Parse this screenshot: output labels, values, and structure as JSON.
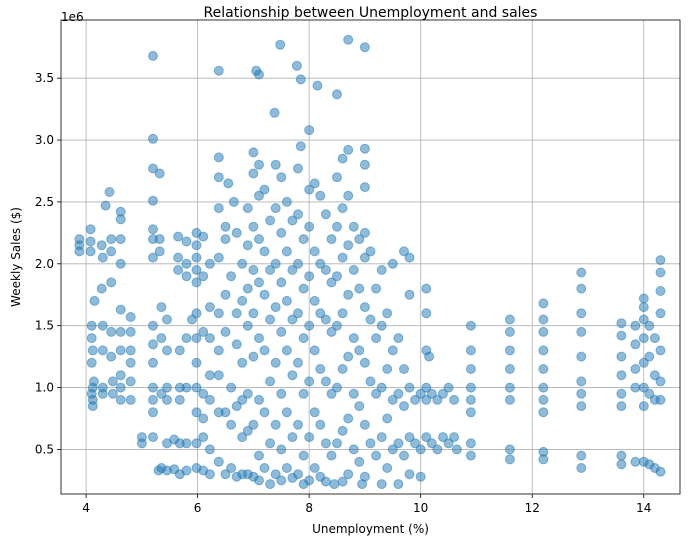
{
  "chart_data": {
    "type": "scatter",
    "title": "Relationship between Unemployment and sales",
    "xlabel": "Unemployment (%)",
    "ylabel": "Weekly Sales ($)",
    "y_offset_label": "1e6",
    "xlim": [
      3.55,
      14.65
    ],
    "ylim": [
      0.14,
      3.97
    ],
    "x_ticks": [
      4,
      6,
      8,
      10,
      12,
      14
    ],
    "x_tick_labels": [
      "4",
      "6",
      "8",
      "10",
      "12",
      "14"
    ],
    "y_ticks": [
      0.5,
      1.0,
      1.5,
      2.0,
      2.5,
      3.0,
      3.5
    ],
    "y_tick_labels": [
      "0.5",
      "1.0",
      "1.5",
      "2.0",
      "2.5",
      "3.0",
      "3.5"
    ],
    "grid": true,
    "marker_color": "#1f77b4",
    "marker_alpha": 0.5,
    "points": [
      [
        3.88,
        2.1
      ],
      [
        3.88,
        2.2
      ],
      [
        3.88,
        2.15
      ],
      [
        4.08,
        2.28
      ],
      [
        4.08,
        2.18
      ],
      [
        4.08,
        2.1
      ],
      [
        4.1,
        1.5
      ],
      [
        4.1,
        1.4
      ],
      [
        4.12,
        1.3
      ],
      [
        4.1,
        1.2
      ],
      [
        4.12,
        1.0
      ],
      [
        4.1,
        0.95
      ],
      [
        4.12,
        0.9
      ],
      [
        4.14,
        1.05
      ],
      [
        4.12,
        0.85
      ],
      [
        4.15,
        1.7
      ],
      [
        4.28,
        2.15
      ],
      [
        4.3,
        2.05
      ],
      [
        4.28,
        1.8
      ],
      [
        4.3,
        1.5
      ],
      [
        4.3,
        1.3
      ],
      [
        4.3,
        1.0
      ],
      [
        4.3,
        0.95
      ],
      [
        4.35,
        2.47
      ],
      [
        4.42,
        2.58
      ],
      [
        4.45,
        1.85
      ],
      [
        4.45,
        1.45
      ],
      [
        4.45,
        1.25
      ],
      [
        4.48,
        1.05
      ],
      [
        4.48,
        0.95
      ],
      [
        4.45,
        2.2
      ],
      [
        4.45,
        2.1
      ],
      [
        4.62,
        2.42
      ],
      [
        4.62,
        2.36
      ],
      [
        4.62,
        2.2
      ],
      [
        4.62,
        2.0
      ],
      [
        4.62,
        1.63
      ],
      [
        4.62,
        1.45
      ],
      [
        4.62,
        1.3
      ],
      [
        4.62,
        1.1
      ],
      [
        4.62,
        1.0
      ],
      [
        4.62,
        0.9
      ],
      [
        4.8,
        1.57
      ],
      [
        4.8,
        1.45
      ],
      [
        4.8,
        1.3
      ],
      [
        4.8,
        1.05
      ],
      [
        4.8,
        0.9
      ],
      [
        4.8,
        1.2
      ],
      [
        5.0,
        0.55
      ],
      [
        5.0,
        0.6
      ],
      [
        5.2,
        3.68
      ],
      [
        5.2,
        3.01
      ],
      [
        5.2,
        2.77
      ],
      [
        5.2,
        2.51
      ],
      [
        5.2,
        2.28
      ],
      [
        5.2,
        2.2
      ],
      [
        5.2,
        2.05
      ],
      [
        5.2,
        1.5
      ],
      [
        5.2,
        1.35
      ],
      [
        5.2,
        1.2
      ],
      [
        5.2,
        1.0
      ],
      [
        5.2,
        0.9
      ],
      [
        5.2,
        0.8
      ],
      [
        5.2,
        0.6
      ],
      [
        5.32,
        2.73
      ],
      [
        5.32,
        2.2
      ],
      [
        5.32,
        2.1
      ],
      [
        5.35,
        1.65
      ],
      [
        5.35,
        1.4
      ],
      [
        5.35,
        0.95
      ],
      [
        5.35,
        0.35
      ],
      [
        5.3,
        0.33
      ],
      [
        5.45,
        1.55
      ],
      [
        5.45,
        1.3
      ],
      [
        5.45,
        1.0
      ],
      [
        5.45,
        0.9
      ],
      [
        5.45,
        0.55
      ],
      [
        5.45,
        0.33
      ],
      [
        5.58,
        0.58
      ],
      [
        5.58,
        0.34
      ],
      [
        5.65,
        2.22
      ],
      [
        5.65,
        2.05
      ],
      [
        5.65,
        1.95
      ],
      [
        5.68,
        1.3
      ],
      [
        5.68,
        1.0
      ],
      [
        5.68,
        0.9
      ],
      [
        5.68,
        0.55
      ],
      [
        5.68,
        0.3
      ],
      [
        5.8,
        2.18
      ],
      [
        5.8,
        2.0
      ],
      [
        5.8,
        1.9
      ],
      [
        5.8,
        1.4
      ],
      [
        5.8,
        1.0
      ],
      [
        5.8,
        0.55
      ],
      [
        5.8,
        0.33
      ],
      [
        5.9,
        1.55
      ],
      [
        5.98,
        2.25
      ],
      [
        5.98,
        2.15
      ],
      [
        5.98,
        2.05
      ],
      [
        5.98,
        1.95
      ],
      [
        5.98,
        1.85
      ],
      [
        5.98,
        1.6
      ],
      [
        5.98,
        1.4
      ],
      [
        5.98,
        1.2
      ],
      [
        5.98,
        1.0
      ],
      [
        5.98,
        0.8
      ],
      [
        5.98,
        0.55
      ],
      [
        5.98,
        0.35
      ],
      [
        6.1,
        2.22
      ],
      [
        6.1,
        1.9
      ],
      [
        6.1,
        1.45
      ],
      [
        6.1,
        0.95
      ],
      [
        6.1,
        0.75
      ],
      [
        6.1,
        0.6
      ],
      [
        6.1,
        0.33
      ],
      [
        6.22,
        2.0
      ],
      [
        6.22,
        1.65
      ],
      [
        6.22,
        1.4
      ],
      [
        6.22,
        1.1
      ],
      [
        6.22,
        0.9
      ],
      [
        6.22,
        0.5
      ],
      [
        6.22,
        0.3
      ],
      [
        6.38,
        3.56
      ],
      [
        6.38,
        2.86
      ],
      [
        6.38,
        2.7
      ],
      [
        6.38,
        2.45
      ],
      [
        6.38,
        2.05
      ],
      [
        6.38,
        1.6
      ],
      [
        6.38,
        1.3
      ],
      [
        6.38,
        1.1
      ],
      [
        6.38,
        0.8
      ],
      [
        6.38,
        0.4
      ],
      [
        6.5,
        2.3
      ],
      [
        6.5,
        2.2
      ],
      [
        6.5,
        1.75
      ],
      [
        6.5,
        1.45
      ],
      [
        6.5,
        0.8
      ],
      [
        6.5,
        0.3
      ],
      [
        6.55,
        2.65
      ],
      [
        6.6,
        1.9
      ],
      [
        6.6,
        1.0
      ],
      [
        6.6,
        0.7
      ],
      [
        6.6,
        0.35
      ],
      [
        6.65,
        2.5
      ],
      [
        6.7,
        2.25
      ],
      [
        6.7,
        1.6
      ],
      [
        6.7,
        1.35
      ],
      [
        6.7,
        0.85
      ],
      [
        6.7,
        0.28
      ],
      [
        6.8,
        2.0
      ],
      [
        6.8,
        1.7
      ],
      [
        6.8,
        1.2
      ],
      [
        6.8,
        0.9
      ],
      [
        6.8,
        0.6
      ],
      [
        6.8,
        0.3
      ],
      [
        6.9,
        2.45
      ],
      [
        6.9,
        2.15
      ],
      [
        6.9,
        1.8
      ],
      [
        6.9,
        1.5
      ],
      [
        6.9,
        0.95
      ],
      [
        6.9,
        0.65
      ],
      [
        6.9,
        0.3
      ],
      [
        7.0,
        2.9
      ],
      [
        7.0,
        2.73
      ],
      [
        7.0,
        2.3
      ],
      [
        7.0,
        1.95
      ],
      [
        7.0,
        1.6
      ],
      [
        7.0,
        1.25
      ],
      [
        7.0,
        0.7
      ],
      [
        7.0,
        0.28
      ],
      [
        7.05,
        3.56
      ],
      [
        7.1,
        3.53
      ],
      [
        7.1,
        2.8
      ],
      [
        7.1,
        2.55
      ],
      [
        7.1,
        2.2
      ],
      [
        7.1,
        1.85
      ],
      [
        7.1,
        1.4
      ],
      [
        7.1,
        0.9
      ],
      [
        7.1,
        0.45
      ],
      [
        7.1,
        0.25
      ],
      [
        7.2,
        2.6
      ],
      [
        7.2,
        2.1
      ],
      [
        7.2,
        1.75
      ],
      [
        7.2,
        1.3
      ],
      [
        7.2,
        0.8
      ],
      [
        7.2,
        0.35
      ],
      [
        7.3,
        2.35
      ],
      [
        7.3,
        1.95
      ],
      [
        7.3,
        1.55
      ],
      [
        7.3,
        1.05
      ],
      [
        7.3,
        0.55
      ],
      [
        7.3,
        0.22
      ],
      [
        7.38,
        3.22
      ],
      [
        7.4,
        2.8
      ],
      [
        7.4,
        2.45
      ],
      [
        7.4,
        2.0
      ],
      [
        7.4,
        1.65
      ],
      [
        7.4,
        1.2
      ],
      [
        7.4,
        0.7
      ],
      [
        7.4,
        0.3
      ],
      [
        7.48,
        3.77
      ],
      [
        7.5,
        2.7
      ],
      [
        7.5,
        2.25
      ],
      [
        7.5,
        1.85
      ],
      [
        7.5,
        1.45
      ],
      [
        7.5,
        0.95
      ],
      [
        7.5,
        0.5
      ],
      [
        7.5,
        0.25
      ],
      [
        7.6,
        2.5
      ],
      [
        7.6,
        2.1
      ],
      [
        7.6,
        1.7
      ],
      [
        7.6,
        1.3
      ],
      [
        7.6,
        0.8
      ],
      [
        7.6,
        0.35
      ],
      [
        7.7,
        2.35
      ],
      [
        7.7,
        1.95
      ],
      [
        7.7,
        1.55
      ],
      [
        7.7,
        1.1
      ],
      [
        7.7,
        0.6
      ],
      [
        7.7,
        0.27
      ],
      [
        7.78,
        3.6
      ],
      [
        7.8,
        2.77
      ],
      [
        7.8,
        2.4
      ],
      [
        7.8,
        2.0
      ],
      [
        7.8,
        1.6
      ],
      [
        7.8,
        1.2
      ],
      [
        7.8,
        0.7
      ],
      [
        7.8,
        0.3
      ],
      [
        7.85,
        3.49
      ],
      [
        7.85,
        2.95
      ],
      [
        7.9,
        2.2
      ],
      [
        7.9,
        1.8
      ],
      [
        7.9,
        1.4
      ],
      [
        7.9,
        0.95
      ],
      [
        7.9,
        0.45
      ],
      [
        7.9,
        0.22
      ],
      [
        8.0,
        3.08
      ],
      [
        8.0,
        2.6
      ],
      [
        8.0,
        2.3
      ],
      [
        8.0,
        1.9
      ],
      [
        8.0,
        1.5
      ],
      [
        8.0,
        1.05
      ],
      [
        8.0,
        0.6
      ],
      [
        8.0,
        0.25
      ],
      [
        8.1,
        2.65
      ],
      [
        8.1,
        2.1
      ],
      [
        8.1,
        1.7
      ],
      [
        8.1,
        1.3
      ],
      [
        8.1,
        0.8
      ],
      [
        8.1,
        0.35
      ],
      [
        8.15,
        3.44
      ],
      [
        8.2,
        2.55
      ],
      [
        8.2,
        2.0
      ],
      [
        8.2,
        1.6
      ],
      [
        8.2,
        1.15
      ],
      [
        8.2,
        0.7
      ],
      [
        8.2,
        0.28
      ],
      [
        8.3,
        2.4
      ],
      [
        8.3,
        1.95
      ],
      [
        8.3,
        1.55
      ],
      [
        8.3,
        1.05
      ],
      [
        8.3,
        0.55
      ],
      [
        8.3,
        0.24
      ],
      [
        8.4,
        2.2
      ],
      [
        8.4,
        1.85
      ],
      [
        8.4,
        1.45
      ],
      [
        8.4,
        0.95
      ],
      [
        8.4,
        0.45
      ],
      [
        8.45,
        0.22
      ],
      [
        8.5,
        3.37
      ],
      [
        8.5,
        2.7
      ],
      [
        8.5,
        2.3
      ],
      [
        8.5,
        1.9
      ],
      [
        8.5,
        1.5
      ],
      [
        8.5,
        1.0
      ],
      [
        8.5,
        0.55
      ],
      [
        8.6,
        2.85
      ],
      [
        8.6,
        2.45
      ],
      [
        8.6,
        2.05
      ],
      [
        8.6,
        1.6
      ],
      [
        8.6,
        1.15
      ],
      [
        8.6,
        0.65
      ],
      [
        8.6,
        0.24
      ],
      [
        8.7,
        3.81
      ],
      [
        8.7,
        2.92
      ],
      [
        8.7,
        2.55
      ],
      [
        8.7,
        2.15
      ],
      [
        8.7,
        1.75
      ],
      [
        8.7,
        1.25
      ],
      [
        8.7,
        0.75
      ],
      [
        8.7,
        0.3
      ],
      [
        8.8,
        2.3
      ],
      [
        8.8,
        1.95
      ],
      [
        8.8,
        1.4
      ],
      [
        8.8,
        0.95
      ],
      [
        8.8,
        0.5
      ],
      [
        8.9,
        2.2
      ],
      [
        8.9,
        1.8
      ],
      [
        8.9,
        1.3
      ],
      [
        8.9,
        0.85
      ],
      [
        8.9,
        0.4
      ],
      [
        8.95,
        0.22
      ],
      [
        9.0,
        3.75
      ],
      [
        9.0,
        2.93
      ],
      [
        9.0,
        2.8
      ],
      [
        9.0,
        2.62
      ],
      [
        9.0,
        2.25
      ],
      [
        9.0,
        2.05
      ],
      [
        9.0,
        1.65
      ],
      [
        9.0,
        1.2
      ],
      [
        9.0,
        0.7
      ],
      [
        9.0,
        0.28
      ],
      [
        9.1,
        2.1
      ],
      [
        9.1,
        1.55
      ],
      [
        9.1,
        1.05
      ],
      [
        9.1,
        0.55
      ],
      [
        9.2,
        1.8
      ],
      [
        9.2,
        1.4
      ],
      [
        9.2,
        0.95
      ],
      [
        9.2,
        0.45
      ],
      [
        9.3,
        1.95
      ],
      [
        9.3,
        1.5
      ],
      [
        9.3,
        1.0
      ],
      [
        9.3,
        0.6
      ],
      [
        9.3,
        0.22
      ],
      [
        9.4,
        1.6
      ],
      [
        9.4,
        1.15
      ],
      [
        9.4,
        0.75
      ],
      [
        9.4,
        0.35
      ],
      [
        9.5,
        2.0
      ],
      [
        9.5,
        1.3
      ],
      [
        9.5,
        0.9
      ],
      [
        9.5,
        0.5
      ],
      [
        9.6,
        1.4
      ],
      [
        9.6,
        0.95
      ],
      [
        9.6,
        0.55
      ],
      [
        9.6,
        0.22
      ],
      [
        9.7,
        2.1
      ],
      [
        9.7,
        1.15
      ],
      [
        9.7,
        0.85
      ],
      [
        9.7,
        0.45
      ],
      [
        9.8,
        2.05
      ],
      [
        9.8,
        1.75
      ],
      [
        9.8,
        1.0
      ],
      [
        9.8,
        0.6
      ],
      [
        9.8,
        0.3
      ],
      [
        9.9,
        0.9
      ],
      [
        9.9,
        0.55
      ],
      [
        10.0,
        0.95
      ],
      [
        10.0,
        0.5
      ],
      [
        10.0,
        0.28
      ],
      [
        10.1,
        1.8
      ],
      [
        10.1,
        1.6
      ],
      [
        10.1,
        1.3
      ],
      [
        10.1,
        1.0
      ],
      [
        10.1,
        0.9
      ],
      [
        10.1,
        0.6
      ],
      [
        10.15,
        1.25
      ],
      [
        10.2,
        0.95
      ],
      [
        10.2,
        0.55
      ],
      [
        10.3,
        0.9
      ],
      [
        10.3,
        0.5
      ],
      [
        10.4,
        0.95
      ],
      [
        10.4,
        0.6
      ],
      [
        10.5,
        1.0
      ],
      [
        10.5,
        0.55
      ],
      [
        10.6,
        0.9
      ],
      [
        10.6,
        0.6
      ],
      [
        10.65,
        0.5
      ],
      [
        10.9,
        1.5
      ],
      [
        10.9,
        1.3
      ],
      [
        10.9,
        1.15
      ],
      [
        10.9,
        1.0
      ],
      [
        10.9,
        0.9
      ],
      [
        10.9,
        0.8
      ],
      [
        10.9,
        0.55
      ],
      [
        10.9,
        0.45
      ],
      [
        11.6,
        1.55
      ],
      [
        11.6,
        1.45
      ],
      [
        11.6,
        1.3
      ],
      [
        11.6,
        1.15
      ],
      [
        11.6,
        1.0
      ],
      [
        11.6,
        0.9
      ],
      [
        11.6,
        0.5
      ],
      [
        11.6,
        0.42
      ],
      [
        12.2,
        1.68
      ],
      [
        12.2,
        1.55
      ],
      [
        12.2,
        1.45
      ],
      [
        12.2,
        1.3
      ],
      [
        12.2,
        1.15
      ],
      [
        12.2,
        1.0
      ],
      [
        12.2,
        0.9
      ],
      [
        12.2,
        0.8
      ],
      [
        12.2,
        0.48
      ],
      [
        12.2,
        0.42
      ],
      [
        12.88,
        1.93
      ],
      [
        12.88,
        1.8
      ],
      [
        12.88,
        1.6
      ],
      [
        12.88,
        1.45
      ],
      [
        12.88,
        1.25
      ],
      [
        12.88,
        1.05
      ],
      [
        12.88,
        0.95
      ],
      [
        12.88,
        0.85
      ],
      [
        12.88,
        0.45
      ],
      [
        12.88,
        0.35
      ],
      [
        13.6,
        1.52
      ],
      [
        13.6,
        1.42
      ],
      [
        13.6,
        1.25
      ],
      [
        13.6,
        1.1
      ],
      [
        13.6,
        0.95
      ],
      [
        13.6,
        0.85
      ],
      [
        13.6,
        0.45
      ],
      [
        13.6,
        0.38
      ],
      [
        13.85,
        1.5
      ],
      [
        13.85,
        1.35
      ],
      [
        13.85,
        1.15
      ],
      [
        13.85,
        1.0
      ],
      [
        13.85,
        0.4
      ],
      [
        14.0,
        1.72
      ],
      [
        14.0,
        1.65
      ],
      [
        14.0,
        1.55
      ],
      [
        14.0,
        1.4
      ],
      [
        14.0,
        1.2
      ],
      [
        14.0,
        1.0
      ],
      [
        14.0,
        0.85
      ],
      [
        14.0,
        0.4
      ],
      [
        14.1,
        1.5
      ],
      [
        14.1,
        1.25
      ],
      [
        14.1,
        0.95
      ],
      [
        14.1,
        0.38
      ],
      [
        14.2,
        1.4
      ],
      [
        14.2,
        1.1
      ],
      [
        14.2,
        0.9
      ],
      [
        14.2,
        0.35
      ],
      [
        14.3,
        2.03
      ],
      [
        14.3,
        1.93
      ],
      [
        14.3,
        1.78
      ],
      [
        14.3,
        1.6
      ],
      [
        14.3,
        1.3
      ],
      [
        14.3,
        1.05
      ],
      [
        14.3,
        0.9
      ],
      [
        14.3,
        0.32
      ]
    ]
  }
}
